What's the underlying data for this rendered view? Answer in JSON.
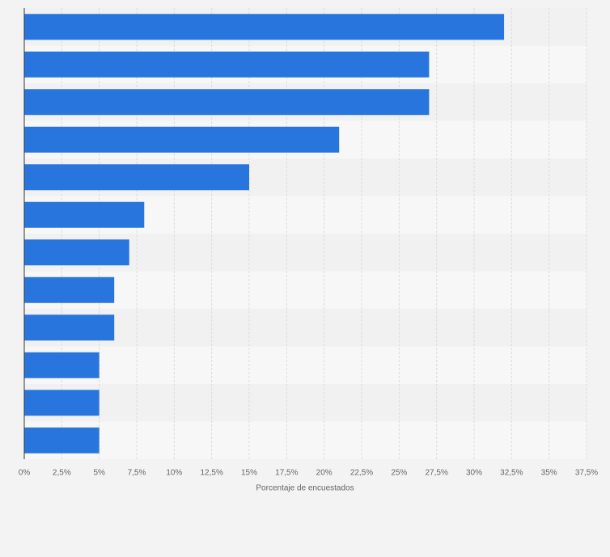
{
  "chart_data": {
    "type": "bar",
    "orientation": "horizontal",
    "x_label": "Porcentaje de encuestados",
    "categories": [
      null,
      null,
      null,
      null,
      null,
      null,
      null,
      null,
      null,
      null,
      null,
      null
    ],
    "values": [
      32,
      27,
      27,
      21,
      15,
      8,
      7,
      6,
      6,
      5,
      5,
      5
    ],
    "color": "#2876dd",
    "xlim": [
      0,
      37.5
    ],
    "xticks": [
      {
        "value": 0,
        "label": "0%"
      },
      {
        "value": 2.5,
        "label": "2,5%"
      },
      {
        "value": 5,
        "label": "5%"
      },
      {
        "value": 7.5,
        "label": "7,5%"
      },
      {
        "value": 10,
        "label": "10%"
      },
      {
        "value": 12.5,
        "label": "12,5%"
      },
      {
        "value": 15,
        "label": "15%"
      },
      {
        "value": 17.5,
        "label": "17,5%"
      },
      {
        "value": 20,
        "label": "20%"
      },
      {
        "value": 22.5,
        "label": "22,5%"
      },
      {
        "value": 25,
        "label": "25%"
      },
      {
        "value": 27.5,
        "label": "27,5%"
      },
      {
        "value": 30,
        "label": "30%"
      },
      {
        "value": 32.5,
        "label": "32,5%"
      },
      {
        "value": 35,
        "label": "35%"
      },
      {
        "value": 37.5,
        "label": "37,5%"
      }
    ],
    "grid": true
  }
}
